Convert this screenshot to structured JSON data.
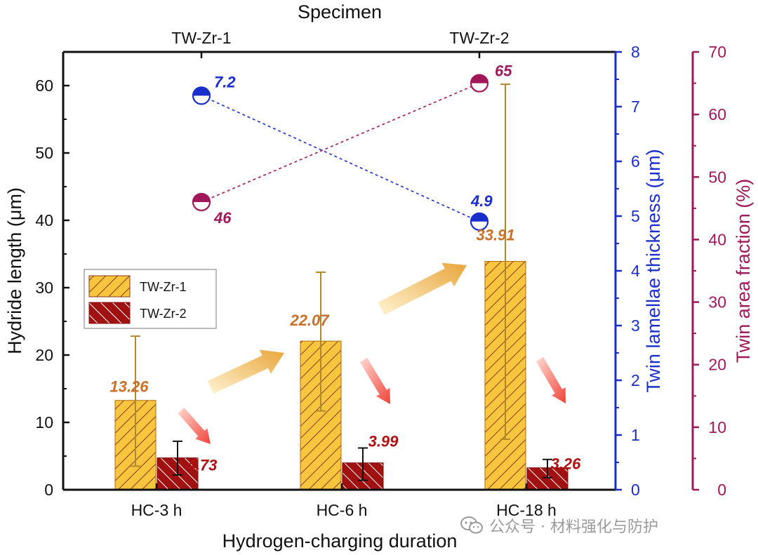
{
  "chart_data": {
    "type": "bar",
    "xlabel": "Hydrogen-charging duration",
    "top_xlabel": "Specimen",
    "top_categories": [
      "TW-Zr-1",
      "TW-Zr-2"
    ],
    "categories": [
      "HC-3 h",
      "HC-6 h",
      "HC-18 h"
    ],
    "ylabel": "Hydride length (μm)",
    "ylim": [
      0,
      65
    ],
    "yticks": [
      "0",
      "10",
      "20",
      "30",
      "40",
      "50",
      "60"
    ],
    "y2label": "Twin lamellae thickness (μm)",
    "y2lim": [
      0,
      8
    ],
    "y2ticks": [
      "0",
      "1",
      "2",
      "3",
      "4",
      "5",
      "6",
      "7",
      "8"
    ],
    "y3label": "Twin area fraction (%)",
    "y3lim": [
      0,
      70
    ],
    "y3ticks": [
      "0",
      "10",
      "20",
      "30",
      "40",
      "50",
      "60",
      "70"
    ],
    "series": [
      {
        "name": "TW-Zr-1",
        "values": [
          13.26,
          22.07,
          33.91
        ],
        "labels": [
          "13.26",
          "22.07",
          "33.91"
        ],
        "error_low": [
          3.5,
          11.7,
          7.5
        ],
        "error_high": [
          22.8,
          32.3,
          60.2
        ],
        "color": "#f8c63e",
        "hatch_color": "#8b3a1a",
        "label_color": "#c8702a"
      },
      {
        "name": "TW-Zr-2",
        "values": [
          4.73,
          3.99,
          3.26
        ],
        "labels": [
          "4.73",
          "3.99",
          "3.26"
        ],
        "error_low": [
          2.2,
          1.4,
          1.8
        ],
        "error_high": [
          7.2,
          6.2,
          4.5
        ],
        "color": "#a01212",
        "hatch_color": "#ffffff",
        "label_color": "#b01010"
      }
    ],
    "twin_thickness": {
      "values": [
        7.2,
        4.9
      ],
      "labels": [
        "7.2",
        "4.9"
      ],
      "color": "#1a2ecc"
    },
    "twin_area_fraction": {
      "values": [
        46,
        65
      ],
      "labels": [
        "46",
        "65"
      ],
      "color": "#a0185a"
    },
    "legend_position": "left"
  },
  "watermark": {
    "text": "公众号 · 材料强化与防护"
  }
}
